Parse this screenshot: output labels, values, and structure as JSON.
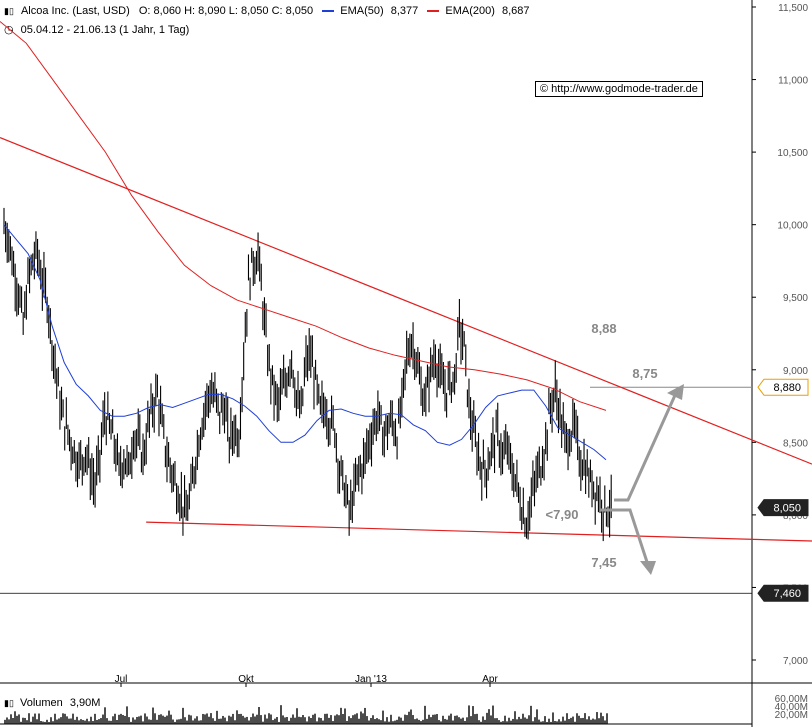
{
  "header": {
    "title": "Alcoa Inc. (Last, USD)",
    "ohlc": "O: 8,060  H: 8,090  L: 8,050  C: 8,050",
    "ema50_label": "EMA(50)",
    "ema50_value": "8,377",
    "ema200_label": "EMA(200)",
    "ema200_value": "8,687",
    "period": "05.04.12 - 21.06.13 (1 Jahr, 1 Tag)",
    "colors": {
      "ema50": "#1f3fd6",
      "ema200": "#e02020",
      "trend": "#e02020"
    }
  },
  "copyright": "© http://www.godmode-trader.de",
  "volume": {
    "label": "Volumen",
    "value": "3,90M",
    "ticks": [
      "60,00M",
      "40,00M",
      "20,00M"
    ]
  },
  "chart_data": {
    "type": "line",
    "yticks": [
      "11,500",
      "11,000",
      "10,500",
      "10,000",
      "9,500",
      "9,000",
      "8,500",
      "8,000",
      "7,500",
      "7,000"
    ],
    "xticks": [
      "Jul",
      "Okt",
      "Jan '13",
      "Apr"
    ],
    "annotations": [
      "8,88",
      "8,75",
      "<7,90",
      "7,45"
    ],
    "price_tags": [
      {
        "label": "8,880",
        "value": 8.88,
        "style": "outline"
      },
      {
        "label": "8,050",
        "value": 8.05,
        "style": "dark"
      },
      {
        "label": "7,460",
        "value": 7.46,
        "style": "dark"
      }
    ],
    "ylim": [
      7.0,
      11.5
    ],
    "price_series": [
      10.0,
      9.9,
      9.7,
      9.55,
      9.3,
      9.6,
      9.75,
      9.8,
      9.6,
      9.5,
      9.2,
      8.95,
      8.7,
      8.6,
      8.5,
      8.4,
      8.35,
      8.45,
      8.3,
      8.2,
      8.4,
      8.7,
      8.6,
      8.5,
      8.3,
      8.4,
      8.3,
      8.55,
      8.5,
      8.4,
      8.6,
      8.75,
      8.85,
      8.6,
      8.4,
      8.3,
      8.2,
      8.1,
      8.0,
      8.15,
      8.4,
      8.6,
      8.75,
      8.85,
      8.8,
      8.7,
      8.75,
      8.5,
      8.6,
      8.55,
      9.1,
      9.6,
      9.75,
      9.8,
      9.45,
      9.1,
      8.9,
      8.75,
      8.85,
      8.95,
      9.1,
      8.8,
      8.7,
      9.05,
      9.1,
      8.9,
      8.7,
      8.75,
      8.65,
      8.6,
      8.3,
      8.2,
      8.0,
      8.15,
      8.3,
      8.35,
      8.5,
      8.6,
      8.7,
      8.55,
      8.6,
      8.65,
      8.55,
      8.75,
      9.1,
      9.2,
      9.1,
      8.85,
      8.8,
      9.0,
      9.1,
      8.95,
      8.85,
      8.9,
      8.95,
      9.3,
      9.15,
      8.75,
      8.55,
      8.4,
      8.3,
      8.35,
      8.5,
      8.55,
      8.4,
      8.45,
      8.3,
      8.2,
      8.05,
      7.95,
      8.1,
      8.25,
      8.35,
      8.5,
      8.75,
      8.85,
      8.7,
      8.5,
      8.55,
      8.6,
      8.4,
      8.35,
      8.25,
      8.2,
      8.15,
      8.05,
      8.05
    ],
    "ema50_series": [
      10.0,
      9.9,
      9.8,
      9.62,
      9.3,
      9.05,
      8.9,
      8.82,
      8.72,
      8.68,
      8.68,
      8.7,
      8.74,
      8.76,
      8.74,
      8.77,
      8.8,
      8.83,
      8.83,
      8.8,
      8.75,
      8.68,
      8.58,
      8.5,
      8.5,
      8.55,
      8.65,
      8.72,
      8.73,
      8.7,
      8.68,
      8.68,
      8.7,
      8.69,
      8.62,
      8.58,
      8.5,
      8.48,
      8.52,
      8.62,
      8.74,
      8.82,
      8.84,
      8.86,
      8.86,
      8.75,
      8.6,
      8.55,
      8.5,
      8.45,
      8.38
    ],
    "ema200_series": [
      11.4,
      11.25,
      11.0,
      10.75,
      10.5,
      10.2,
      9.95,
      9.72,
      9.58,
      9.48,
      9.42,
      9.36,
      9.3,
      9.22,
      9.15,
      9.1,
      9.06,
      9.02,
      9.0,
      8.97,
      8.93,
      8.87,
      8.78,
      8.72
    ],
    "trendlines": [
      {
        "name": "upper",
        "from": [
          0,
          10.6
        ],
        "to": [
          1,
          8.35
        ]
      },
      {
        "name": "lower",
        "from": [
          0.18,
          7.95
        ],
        "to": [
          1,
          7.82
        ]
      }
    ]
  }
}
